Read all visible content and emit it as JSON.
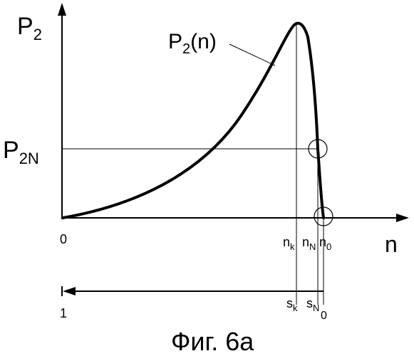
{
  "figure": {
    "y_axis_label": {
      "base": "P",
      "sub": "2"
    },
    "x_axis_label": "n",
    "origin_label": "0",
    "curve_label": {
      "base": "P",
      "sub": "2",
      "suffix": "(n)"
    },
    "level_label": {
      "base": "P",
      "sub": "2N"
    },
    "x_ticks": [
      {
        "base": "n",
        "sub": "k"
      },
      {
        "base": "n",
        "sub": "N"
      },
      {
        "base": "n",
        "sub": "0"
      }
    ],
    "slip_axis": {
      "left_label": "1",
      "ticks": [
        {
          "base": "s",
          "sub": "k"
        },
        {
          "base": "s",
          "sub": "N"
        },
        {
          "base": "",
          "sub": "0"
        }
      ]
    },
    "caption": "Фиг. 6а",
    "line_color": "#000000"
  }
}
